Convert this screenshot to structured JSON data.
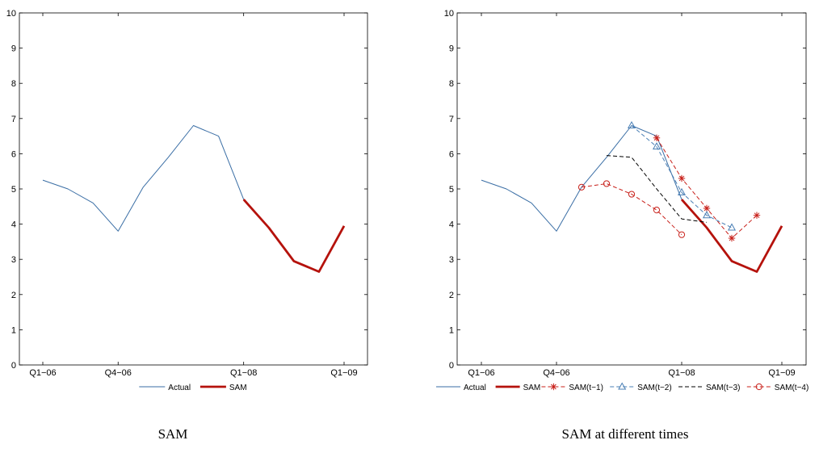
{
  "chart_data": [
    {
      "type": "line",
      "caption": "SAM",
      "ylim": [
        0,
        10
      ],
      "y_ticks": [
        "0",
        "1",
        "2",
        "3",
        "4",
        "5",
        "6",
        "7",
        "8",
        "9",
        "10"
      ],
      "x_ticks": [
        {
          "x": 0,
          "label": "Q1−06"
        },
        {
          "x": 3,
          "label": "Q4−06"
        },
        {
          "x": 8,
          "label": "Q1−08"
        },
        {
          "x": 12,
          "label": "Q1−09"
        }
      ],
      "series": [
        {
          "name": "Actual",
          "style": "thin",
          "color": "#3a6ea5",
          "x": [
            0,
            1,
            2,
            3,
            4,
            5,
            6,
            7,
            8
          ],
          "y": [
            5.25,
            5.0,
            4.6,
            3.8,
            5.05,
            5.9,
            6.8,
            6.5,
            4.7
          ]
        },
        {
          "name": "SAM",
          "style": "thick",
          "color": "#b5120c",
          "x": [
            8,
            9,
            10,
            11,
            12
          ],
          "y": [
            4.7,
            3.9,
            2.95,
            2.65,
            3.95
          ]
        }
      ]
    },
    {
      "type": "line",
      "caption": "SAM at different times",
      "ylim": [
        0,
        10
      ],
      "y_ticks": [
        "0",
        "1",
        "2",
        "3",
        "4",
        "5",
        "6",
        "7",
        "8",
        "9",
        "10"
      ],
      "x_ticks": [
        {
          "x": 0,
          "label": "Q1−06"
        },
        {
          "x": 3,
          "label": "Q4−06"
        },
        {
          "x": 8,
          "label": "Q1−08"
        },
        {
          "x": 12,
          "label": "Q1−09"
        }
      ],
      "series": [
        {
          "name": "Actual",
          "style": "thin",
          "color": "#3a6ea5",
          "x": [
            0,
            1,
            2,
            3,
            4,
            5,
            6,
            7,
            8
          ],
          "y": [
            5.25,
            5.0,
            4.6,
            3.8,
            5.05,
            5.9,
            6.8,
            6.5,
            4.7
          ]
        },
        {
          "name": "SAM",
          "style": "thick",
          "color": "#b5120c",
          "x": [
            8,
            9,
            10,
            11,
            12
          ],
          "y": [
            4.7,
            3.9,
            2.95,
            2.65,
            3.95
          ]
        },
        {
          "name": "SAM(t−1)",
          "style": "dash",
          "marker": "star",
          "color": "#c8201a",
          "x": [
            7,
            8,
            9,
            10,
            11
          ],
          "y": [
            6.45,
            5.3,
            4.45,
            3.6,
            4.25
          ]
        },
        {
          "name": "SAM(t−2)",
          "style": "dash",
          "marker": "triangle",
          "color": "#4a7fb5",
          "x": [
            6,
            7,
            8,
            9,
            10
          ],
          "y": [
            6.8,
            6.2,
            4.9,
            4.25,
            3.9
          ]
        },
        {
          "name": "SAM(t−3)",
          "style": "dash",
          "marker": "none",
          "color": "#000000",
          "x": [
            5,
            6,
            7,
            8,
            9
          ],
          "y": [
            5.95,
            5.9,
            5.0,
            4.15,
            4.05
          ]
        },
        {
          "name": "SAM(t−4)",
          "style": "dash",
          "marker": "circle",
          "color": "#c8201a",
          "x": [
            4,
            5,
            6,
            7,
            8
          ],
          "y": [
            5.05,
            5.15,
            4.85,
            4.4,
            3.7
          ]
        }
      ]
    }
  ]
}
